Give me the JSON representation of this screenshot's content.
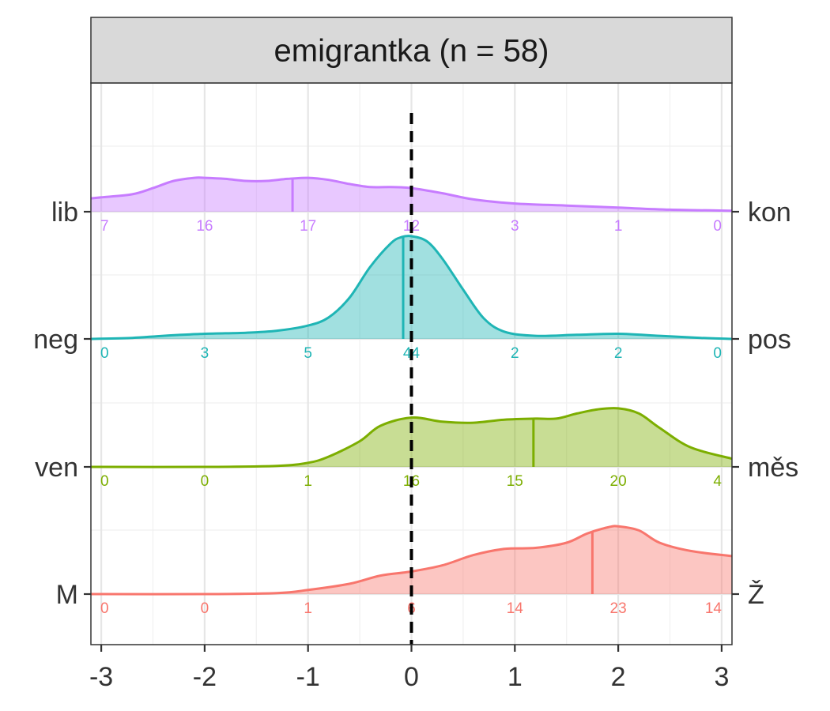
{
  "chart_data": {
    "type": "area",
    "title": "emigrantka (n = 58)",
    "xlabel": "",
    "ylabel": "",
    "xlim": [
      -3.1,
      3.1
    ],
    "x_ticks": [
      -3,
      -2,
      -1,
      0,
      1,
      2,
      3
    ],
    "x_tick_labels": [
      "-3",
      "-2",
      "-1",
      "0",
      "1",
      "2",
      "3"
    ],
    "reference_line_x": 0,
    "grid": true,
    "count_positions": [
      -3,
      -2,
      -1,
      0,
      1,
      2,
      3
    ],
    "series": [
      {
        "left_label": "lib",
        "right_label": "kon",
        "color": "#C77CFF",
        "counts": [
          "7",
          "16",
          "17",
          "12",
          "3",
          "1",
          "0"
        ],
        "mean": -1.15,
        "density_x": [
          -3.1,
          -3.0,
          -2.7,
          -2.5,
          -2.3,
          -2.1,
          -2.0,
          -1.8,
          -1.6,
          -1.4,
          -1.2,
          -1.0,
          -0.8,
          -0.6,
          -0.4,
          -0.2,
          0.0,
          0.3,
          0.6,
          1.0,
          1.5,
          2.0,
          2.5,
          3.1
        ],
        "density_y": [
          0.13,
          0.14,
          0.17,
          0.23,
          0.3,
          0.33,
          0.33,
          0.32,
          0.3,
          0.3,
          0.32,
          0.33,
          0.31,
          0.27,
          0.24,
          0.24,
          0.23,
          0.18,
          0.12,
          0.08,
          0.06,
          0.04,
          0.02,
          0.01
        ]
      },
      {
        "left_label": "neg",
        "right_label": "pos",
        "color": "#1FB5B5",
        "counts": [
          "0",
          "3",
          "5",
          "44",
          "2",
          "2",
          "0"
        ],
        "mean": -0.08,
        "density_x": [
          -3.1,
          -2.7,
          -2.4,
          -2.0,
          -1.6,
          -1.3,
          -1.0,
          -0.8,
          -0.6,
          -0.4,
          -0.2,
          -0.1,
          0.0,
          0.15,
          0.3,
          0.5,
          0.7,
          0.9,
          1.2,
          1.6,
          2.0,
          2.4,
          2.8,
          3.1
        ],
        "density_y": [
          0.0,
          0.01,
          0.03,
          0.05,
          0.06,
          0.08,
          0.13,
          0.21,
          0.4,
          0.7,
          0.93,
          0.99,
          1.0,
          0.95,
          0.78,
          0.48,
          0.2,
          0.07,
          0.03,
          0.04,
          0.05,
          0.03,
          0.01,
          0.0
        ]
      },
      {
        "left_label": "ven",
        "right_label": "měs",
        "color": "#7CAE00",
        "counts": [
          "0",
          "0",
          "1",
          "16",
          "15",
          "20",
          "4"
        ],
        "mean": 1.18,
        "density_x": [
          -3.1,
          -2.0,
          -1.3,
          -1.0,
          -0.8,
          -0.5,
          -0.3,
          0.0,
          0.3,
          0.6,
          0.9,
          1.2,
          1.4,
          1.6,
          1.8,
          2.0,
          2.2,
          2.4,
          2.7,
          3.1
        ],
        "density_y": [
          0.0,
          0.0,
          0.01,
          0.04,
          0.1,
          0.25,
          0.4,
          0.48,
          0.44,
          0.43,
          0.46,
          0.47,
          0.47,
          0.52,
          0.56,
          0.57,
          0.52,
          0.38,
          0.19,
          0.08
        ]
      },
      {
        "left_label": "M",
        "right_label": "Ž",
        "color": "#F8766D",
        "counts": [
          "0",
          "0",
          "1",
          "6",
          "14",
          "23",
          "14"
        ],
        "mean": 1.75,
        "density_x": [
          -3.1,
          -2.0,
          -1.3,
          -1.0,
          -0.6,
          -0.3,
          0.0,
          0.3,
          0.6,
          0.9,
          1.2,
          1.5,
          1.7,
          1.9,
          2.0,
          2.2,
          2.4,
          2.7,
          3.1
        ],
        "density_y": [
          0.0,
          0.0,
          0.01,
          0.04,
          0.1,
          0.18,
          0.22,
          0.28,
          0.38,
          0.44,
          0.45,
          0.5,
          0.59,
          0.65,
          0.66,
          0.62,
          0.5,
          0.42,
          0.37
        ]
      }
    ]
  }
}
